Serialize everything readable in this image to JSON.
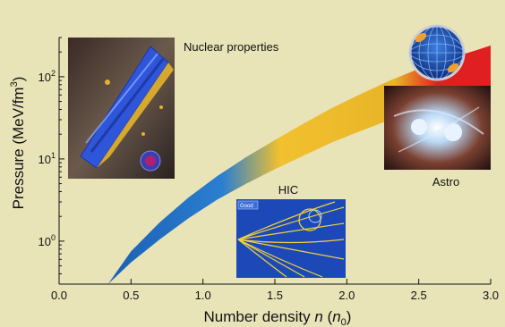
{
  "chart_data": {
    "type": "area",
    "title": "",
    "xlabel": "Number density",
    "xlabel_var": "n",
    "xlabel_unit_prefix": "(",
    "xlabel_unit": "n",
    "xlabel_unit_sub": "0",
    "xlabel_unit_suffix": ")",
    "ylabel": "Pressure (MeV/fm",
    "ylabel_sup": "3",
    "ylabel_close": ")",
    "x_ticks": [
      "0.0",
      "0.5",
      "1.0",
      "1.5",
      "2.0",
      "2.5",
      "3.0"
    ],
    "x_tick_values": [
      0.0,
      0.5,
      1.0,
      1.5,
      2.0,
      2.5,
      3.0
    ],
    "y_ticks": [
      {
        "value": 1,
        "base": "10",
        "exp": "0"
      },
      {
        "value": 10,
        "base": "10",
        "exp": "1"
      },
      {
        "value": 100,
        "base": "10",
        "exp": "2"
      }
    ],
    "xlim": [
      0,
      3.0
    ],
    "ylim": [
      0.3,
      300
    ],
    "y_scale": "log",
    "band": {
      "x": [
        0.34,
        0.5,
        0.7,
        0.9,
        1.1,
        1.3,
        1.5,
        1.7,
        1.9,
        2.1,
        2.3,
        2.5,
        2.7,
        2.9,
        3.0
      ],
      "lower": [
        0.3,
        0.55,
        1.05,
        1.9,
        3.2,
        5.0,
        7.5,
        11,
        16,
        22,
        30,
        40,
        52,
        66,
        75
      ],
      "upper": [
        0.3,
        0.75,
        1.7,
        3.4,
        6.2,
        10.5,
        17,
        27,
        42,
        62,
        90,
        125,
        165,
        210,
        240
      ],
      "colors": [
        "#1a5fb4",
        "#2b7fd0",
        "#f2c12e",
        "#e8b428",
        "#e02020"
      ]
    },
    "annotations": [
      "Nuclear properties",
      "HIC",
      "Astro"
    ],
    "grid": false
  },
  "images": {
    "nuclear": "nuclear-matter-slab-illustration",
    "hic": "heavy-ion-collision-tracks",
    "hic_badge": "Good",
    "astro": "neutron-star-merger-illustration",
    "star": "neutron-star-globe-icon"
  }
}
